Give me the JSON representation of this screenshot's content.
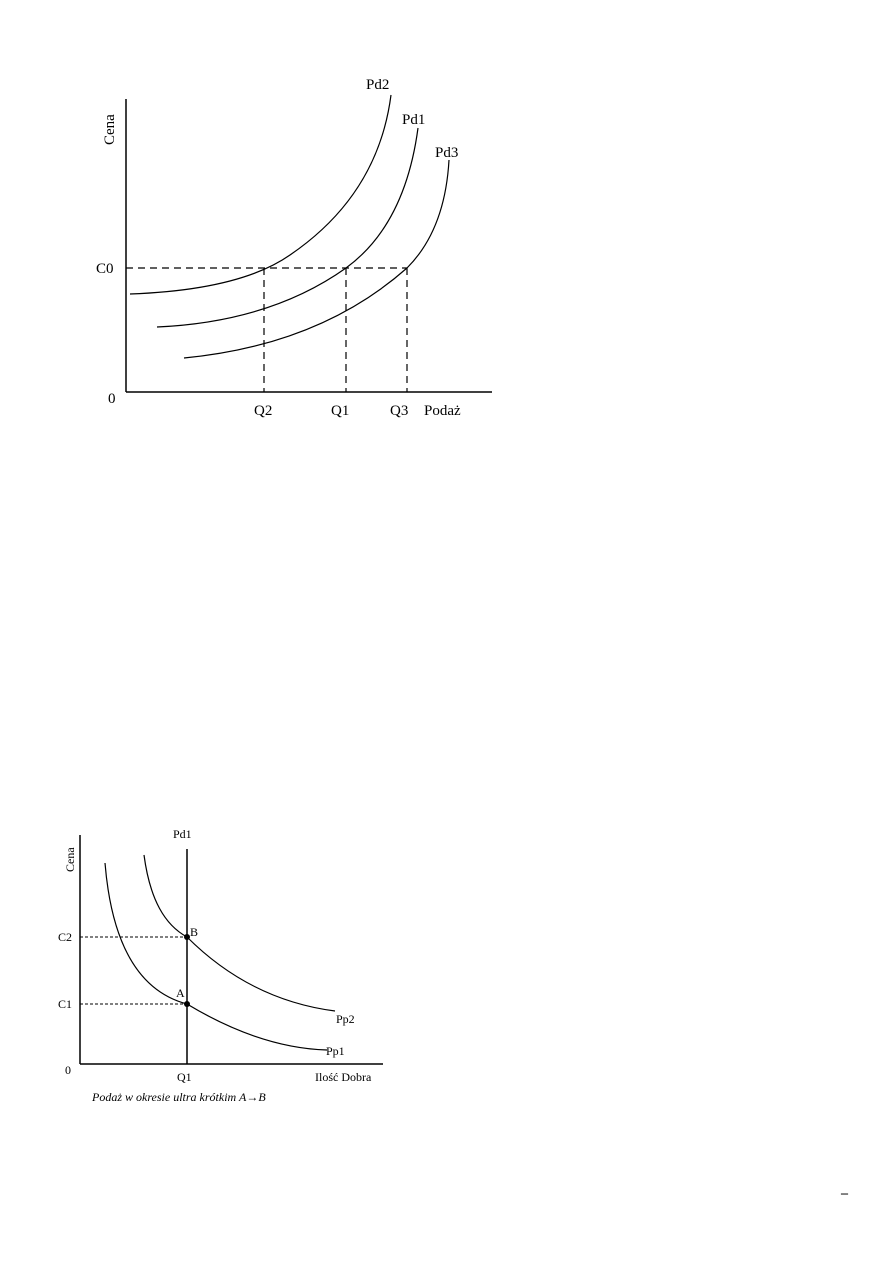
{
  "diagram_top": {
    "y_axis_label": "Cena",
    "x_axis_label": "Podaż",
    "origin_label": "0",
    "price_label": "C0",
    "curves": [
      "Pd2",
      "Pd1",
      "Pd3"
    ],
    "quantity_labels": [
      "Q2",
      "Q1",
      "Q3"
    ]
  },
  "diagram_bottom": {
    "y_axis_label": "Cena",
    "x_axis_label": "Ilość Dobra",
    "origin_label": "0",
    "price_labels": [
      "C2",
      "C1"
    ],
    "quantity_label": "Q1",
    "vertical_curve": "Pd1",
    "curves": [
      "Pp2",
      "Pp1"
    ],
    "points": [
      "B",
      "A"
    ],
    "caption": "Podaż w okresie ultra krótkim A→B"
  },
  "footer": {
    "mark": "–"
  }
}
